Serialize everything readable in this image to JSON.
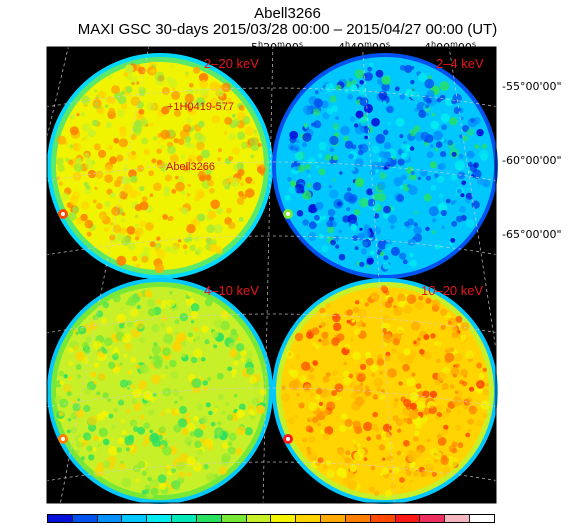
{
  "title": "Abell3266",
  "subtitle": "MAXI GSC 30-days 2015/03/28 00:00 – 2015/04/27 00:00 (UT)",
  "ra_labels": [
    {
      "h": "5",
      "m": "20",
      "s": "00"
    },
    {
      "h": "4",
      "m": "40",
      "s": "00"
    },
    {
      "h": "4",
      "m": "00",
      "s": "00"
    }
  ],
  "dec_labels": [
    {
      "d": "-55",
      "m": "00",
      "s": "00"
    },
    {
      "d": "-60",
      "m": "00",
      "s": "00"
    },
    {
      "d": "-65",
      "m": "00",
      "s": "00"
    }
  ],
  "panels": [
    {
      "band": "2–20 keV",
      "scheme": "warm"
    },
    {
      "band": "2–4 keV",
      "scheme": "cool"
    },
    {
      "band": "4–10 keV",
      "scheme": "mid"
    },
    {
      "band": "10–20 keV",
      "scheme": "hot"
    }
  ],
  "sources": [
    "+1H0419-577",
    "Abell3266"
  ],
  "colorbar_colors": [
    "#0010d8",
    "#0052f0",
    "#0090ff",
    "#00c8ff",
    "#00ecf0",
    "#00e8b8",
    "#28e060",
    "#78e838",
    "#c8f028",
    "#f4f400",
    "#ffd400",
    "#ffaa00",
    "#ff7e00",
    "#ff4800",
    "#ff1818",
    "#ee3060",
    "#f4b4c0",
    "#ffffff"
  ]
}
